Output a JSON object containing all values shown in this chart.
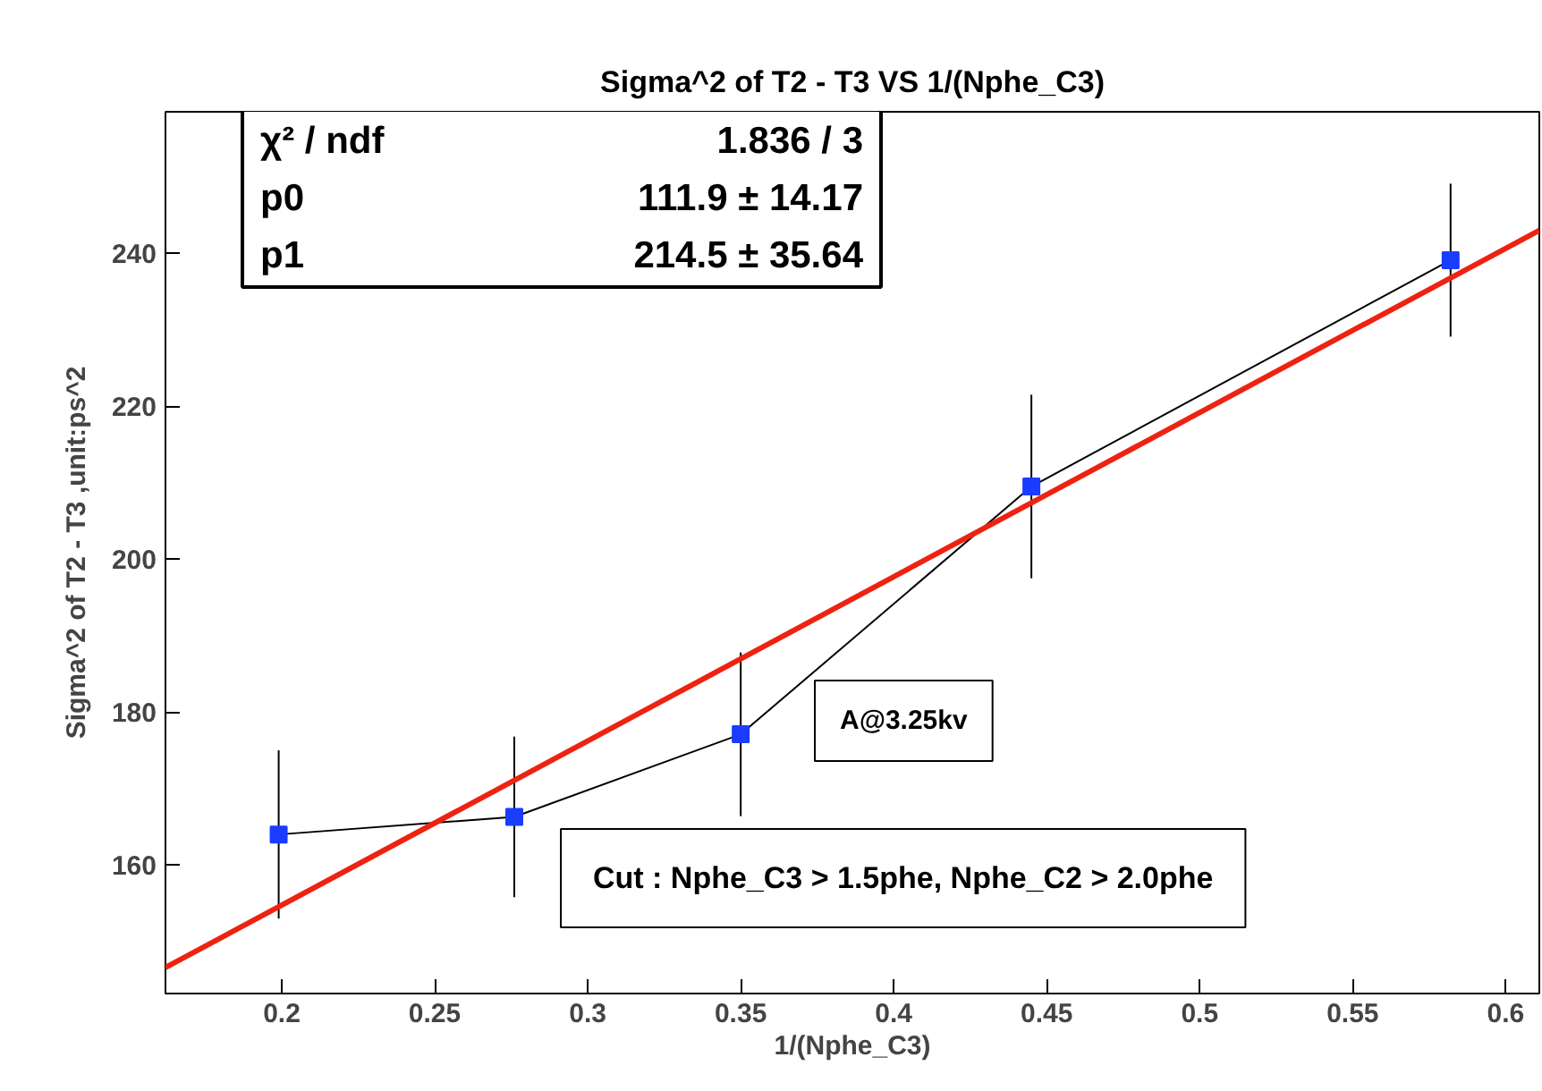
{
  "chart_data": {
    "type": "line",
    "title": "Sigma^2 of T2 - T3 VS 1/(Nphe_C3)",
    "xlabel": "1/(Nphe_C3)",
    "ylabel": "Sigma^2 of T2 - T3 ,unit:ps^2",
    "xlim": [
      0.162,
      0.611
    ],
    "ylim": [
      143.2,
      258.5
    ],
    "xticks": [
      0.2,
      0.25,
      0.3,
      0.35,
      0.4,
      0.45,
      0.5,
      0.55,
      0.6
    ],
    "yticks": [
      160,
      180,
      200,
      220,
      240
    ],
    "grid": false,
    "series": [
      {
        "type": "line",
        "color": "#000000",
        "colors": [
          "#1a3cff",
          "#1a3cff",
          "#1a3cff",
          "#1a3cff",
          "#1a3cff"
        ],
        "marker": "square",
        "x": [
          0.199,
          0.276,
          0.35,
          0.445,
          0.582
        ],
        "values": [
          164.0,
          166.3,
          177.1,
          209.5,
          239.1
        ],
        "errors": [
          11,
          10.5,
          10.7,
          12,
          10
        ]
      },
      {
        "type": "line",
        "color": "#ee2211",
        "x": [
          0.162,
          0.611
        ],
        "values": [
          146.6,
          243.0
        ]
      }
    ],
    "annotations": [
      "χ² / ndf",
      "1.836 / 3",
      "p0",
      "111.9 ± 14.17",
      "p1",
      "214.5 ± 35.64",
      "A@3.25kv",
      "Cut : Nphe_C3 > 1.5phe, Nphe_C2 > 2.0phe"
    ]
  }
}
